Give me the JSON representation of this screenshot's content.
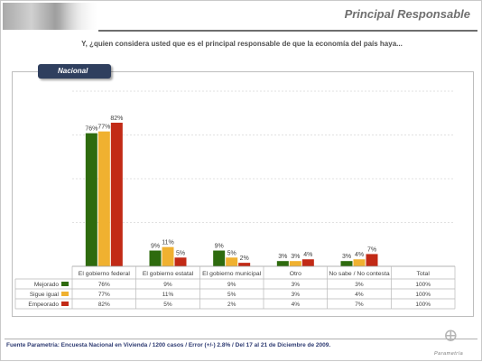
{
  "header": {
    "title": "Principal Responsable"
  },
  "question": "Y, ¿quien considera usted que es el principal responsable de que la economía del país haya...",
  "tab_label": "Nacional",
  "footer": "Fuente Parametría: Encuesta Nacional en Vivienda / 1200 casos / Error (+/-) 2.8% / Del 17 al 21 de Diciembre de 2009.",
  "logo_text": "Parametría",
  "colors": {
    "Mejorado": "#2e6b0e",
    "Sigue igual": "#f0b130",
    "Empeorado": "#c22a16"
  },
  "chart_data": {
    "type": "bar",
    "categories": [
      "El gobierno federal",
      "El gobierno estatal",
      "El gobierno municipal",
      "Otro",
      "No sabe / No contesta",
      "Total"
    ],
    "series": [
      {
        "name": "Mejorado",
        "values": [
          76,
          9,
          9,
          3,
          3,
          100
        ]
      },
      {
        "name": "Sigue igual",
        "values": [
          77,
          11,
          5,
          3,
          4,
          100
        ]
      },
      {
        "name": "Empeorado",
        "values": [
          82,
          5,
          2,
          4,
          7,
          100
        ]
      }
    ],
    "bar_categories": [
      "El gobierno federal",
      "El gobierno estatal",
      "El gobierno municipal",
      "Otro",
      "No sabe / No contesta"
    ],
    "ylim": [
      0,
      100
    ],
    "grid": true,
    "legend": "table-left",
    "table": {
      "Mejorado": [
        "76%",
        "9%",
        "9%",
        "3%",
        "3%",
        "100%"
      ],
      "Sigue igual": [
        "77%",
        "11%",
        "5%",
        "3%",
        "4%",
        "100%"
      ],
      "Empeorado": [
        "82%",
        "5%",
        "2%",
        "4%",
        "7%",
        "100%"
      ]
    }
  }
}
